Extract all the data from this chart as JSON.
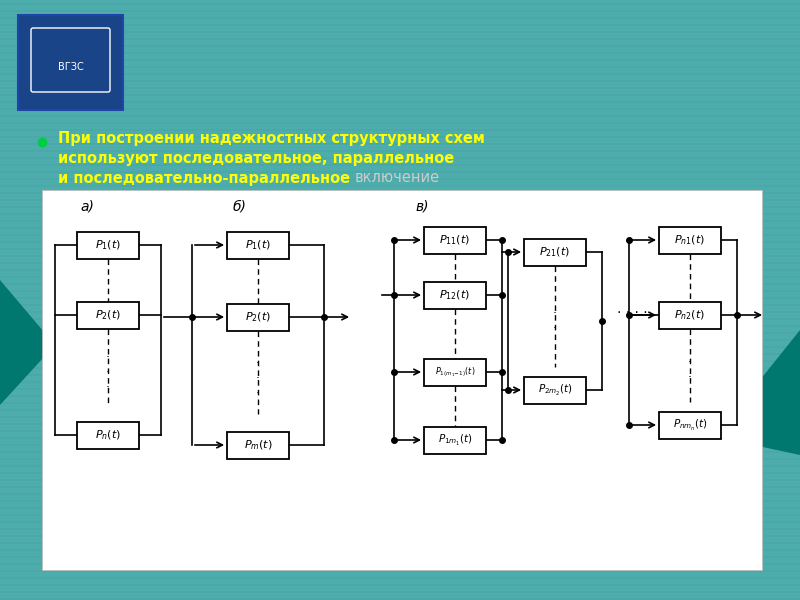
{
  "bg_teal": "#4aa8a8",
  "logo_blue": "#1a4488",
  "teal_deco": "#007870",
  "white": "#ffffff",
  "black": "#000000",
  "yellow": "#ffff00",
  "gray_text": "#cccccc",
  "green_bullet": "#00cc44",
  "title_line1": "При построении надежностных",
  "title_line2": "структурных схем",
  "title_line3a": "используют",
  "title_line3b": "последовательное,",
  "title_line3c": "параллельное",
  "title_line4a": "и",
  "title_line4b": "последовательно-параллельное",
  "title_line4c": "включение",
  "label_a": "а)",
  "label_b": "б)",
  "label_v": "в)"
}
